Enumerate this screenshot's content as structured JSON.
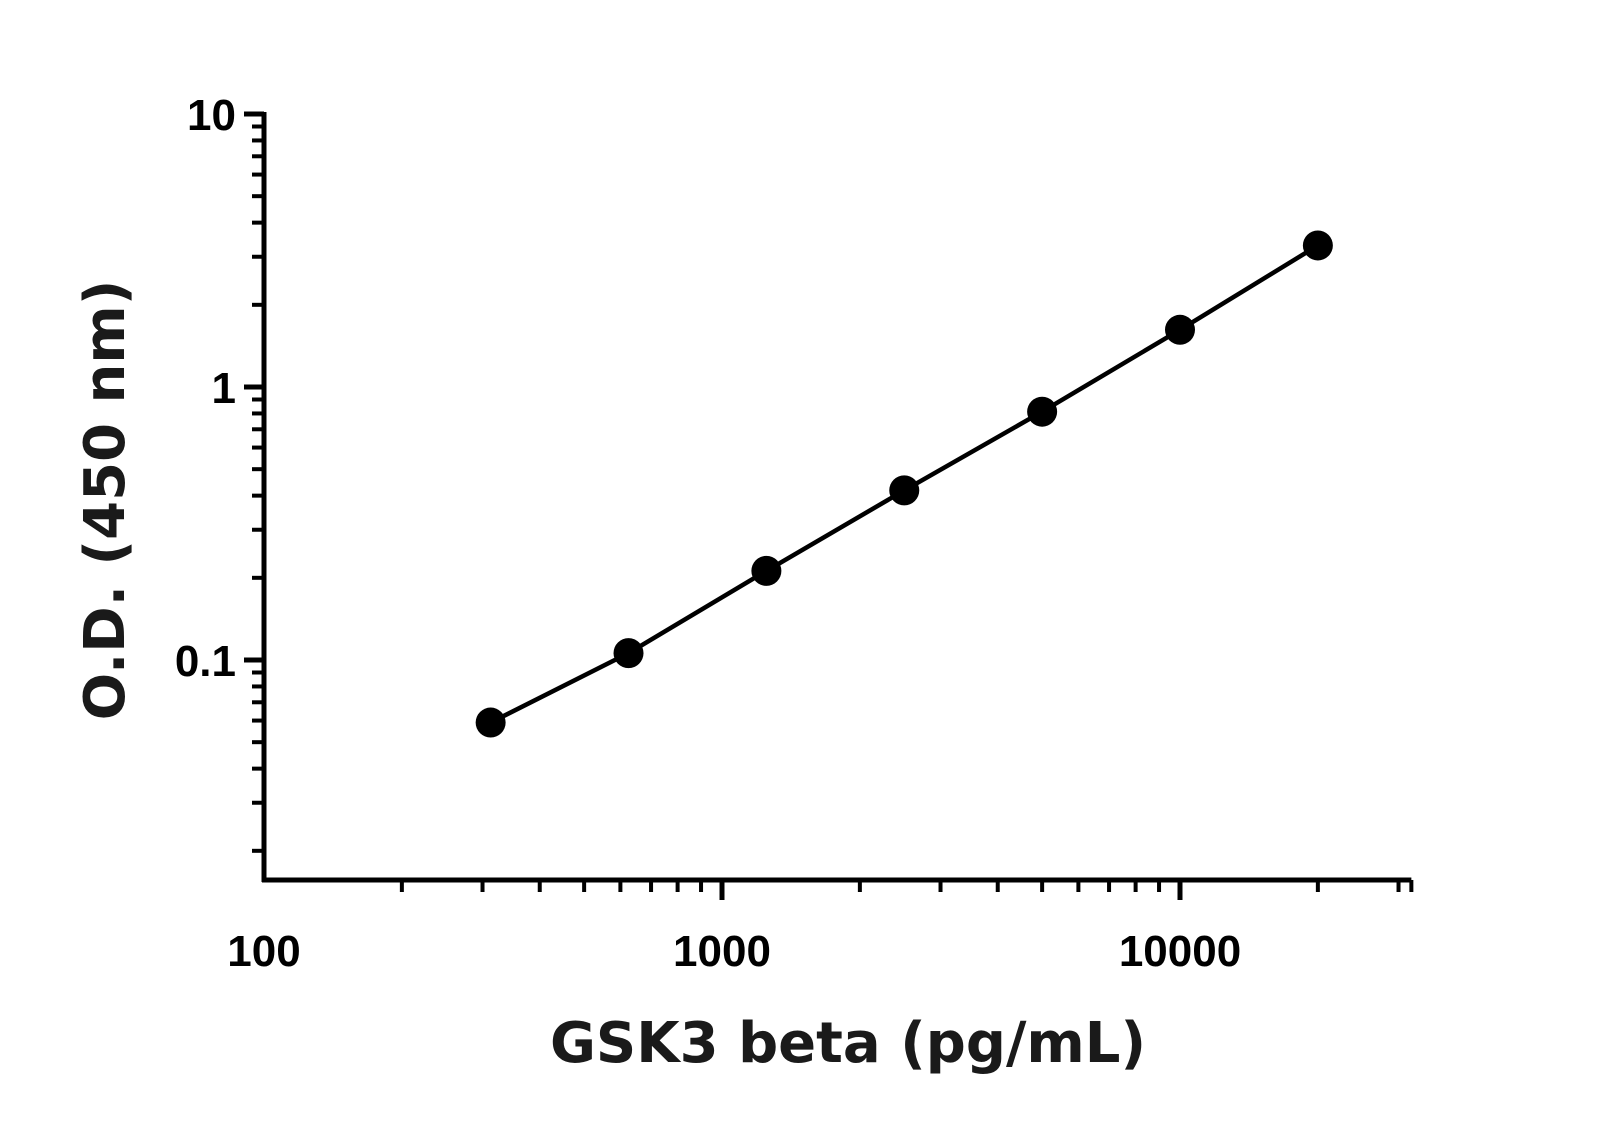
{
  "chart_data": {
    "type": "line",
    "xlabel": "GSK3 beta (pg/mL)",
    "ylabel": "O.D. (450 nm)",
    "x_scale": "log",
    "y_scale": "log",
    "xlim": [
      100,
      32000
    ],
    "ylim": [
      0.018,
      10
    ],
    "x_ticks": [
      100,
      1000,
      10000
    ],
    "x_tick_labels": [
      "100",
      "1000",
      "10000"
    ],
    "y_ticks": [
      0.1,
      1,
      10
    ],
    "y_tick_labels": [
      "0.1",
      "1",
      "10"
    ],
    "grid": false,
    "legend": "none",
    "series": [
      {
        "x": [
          312.5,
          625,
          1250,
          2500,
          5000,
          10000,
          20000
        ],
        "values": [
          0.059,
          0.106,
          0.212,
          0.418,
          0.812,
          1.62,
          3.3
        ],
        "color": "#000000",
        "marker": "circle"
      }
    ]
  }
}
